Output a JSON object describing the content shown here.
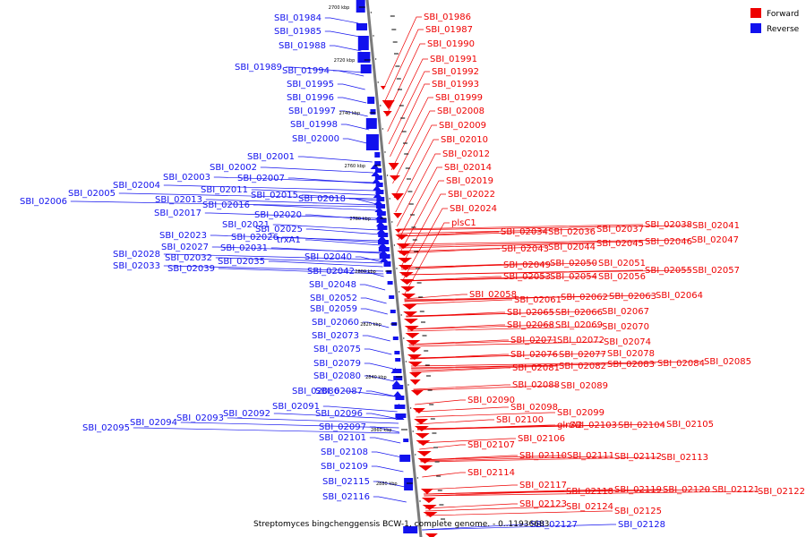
{
  "colors": {
    "forward": "#ee0000",
    "reverse": "#1212ee",
    "axis": "#888888"
  },
  "legend": {
    "forward_label": "Forward",
    "reverse_label": "Reverse"
  },
  "caption": "Streptomyces bingchenggensis BCW-1, complete genome. - 0..11936683",
  "ticks": [
    "2700 kbp",
    "2720 kbp",
    "2740 kbp",
    "2760 kbp",
    "2780 kbp",
    "2800 kbp",
    "2820 kbp",
    "2840 kbp",
    "2860 kbp",
    "2880 kbp"
  ],
  "reverse_genes": [
    "SBI_01984",
    "SBI_01985",
    "SBI_01988",
    "SBI_01989",
    "SBI_01994",
    "SBI_01995",
    "SBI_01996",
    "SBI_01997",
    "SBI_01998",
    "SBI_02000",
    "SBI_02001",
    "SBI_02002",
    "SBI_02003",
    "SBI_02007",
    "SBI_02004",
    "SBI_02011",
    "SBI_02005",
    "SBI_02015",
    "SBI_02013",
    "SBI_02018",
    "SBI_02006",
    "SBI_02016",
    "SBI_02017",
    "SBI_02020",
    "SBI_02021",
    "SBI_02025",
    "SBI_02023",
    "SBI_02026",
    "trxA1",
    "SBI_02027",
    "SBI_02031",
    "SBI_02028",
    "SBI_02040",
    "SBI_02032",
    "SBI_02035",
    "SBI_02033",
    "SBI_02039",
    "SBI_02042",
    "SBI_02048",
    "SBI_02052",
    "SBI_02059",
    "SBI_02060",
    "SBI_02073",
    "SBI_02075",
    "SBI_02079",
    "SBI_02080",
    "SBI_02086",
    "SBI_02087",
    "SBI_02091",
    "SBI_02092",
    "SBI_02093",
    "SBI_02096",
    "SBI_02094",
    "SBI_02097",
    "SBI_02095",
    "SBI_02101",
    "SBI_02108",
    "SBI_02109",
    "SBI_02115",
    "SBI_02116",
    "SBI_02127",
    "SBI_02128"
  ],
  "forward_genes": [
    "SBI_01986",
    "SBI_01987",
    "SBI_01990",
    "SBI_01991",
    "SBI_01992",
    "SBI_01993",
    "SBI_01999",
    "SBI_02008",
    "SBI_02009",
    "SBI_02010",
    "SBI_02012",
    "SBI_02014",
    "SBI_02019",
    "SBI_02022",
    "SBI_02024",
    "plsC1",
    "SBI_02034",
    "SBI_02036",
    "SBI_02037",
    "SBI_02038",
    "SBI_02041",
    "SBI_02043",
    "SBI_02044",
    "SBI_02045",
    "SBI_02046",
    "SBI_02047",
    "SBI_02049",
    "SBI_02050",
    "SBI_02051",
    "SBI_02053",
    "SBI_02054",
    "SBI_02056",
    "SBI_02055",
    "SBI_02057",
    "SBI_02058",
    "SBI_02061",
    "SBI_02062",
    "SBI_02063",
    "SBI_02064",
    "SBI_02065",
    "SBI_02066",
    "SBI_02067",
    "SBI_02068",
    "SBI_02069",
    "SBI_02070",
    "SBI_02071",
    "SBI_02072",
    "SBI_02074",
    "SBI_02076",
    "SBI_02077",
    "SBI_02078",
    "SBI_02081",
    "SBI_02082",
    "SBI_02083",
    "SBI_02084",
    "SBI_02085",
    "SBI_02088",
    "SBI_02089",
    "SBI_02090",
    "SBI_02098",
    "SBI_02099",
    "SBI_02100",
    "glnA2",
    "SBI_02103",
    "SBI_02104",
    "SBI_02105",
    "SBI_02106",
    "SBI_02107",
    "SBI_02110",
    "SBI_02111",
    "SBI_02112",
    "SBI_02113",
    "SBI_02114",
    "SBI_02117",
    "SBI_02118",
    "SBI_02119",
    "SBI_02120",
    "SBI_02121",
    "SBI_02122",
    "SBI_02123",
    "SBI_02124",
    "SBI_02125"
  ]
}
